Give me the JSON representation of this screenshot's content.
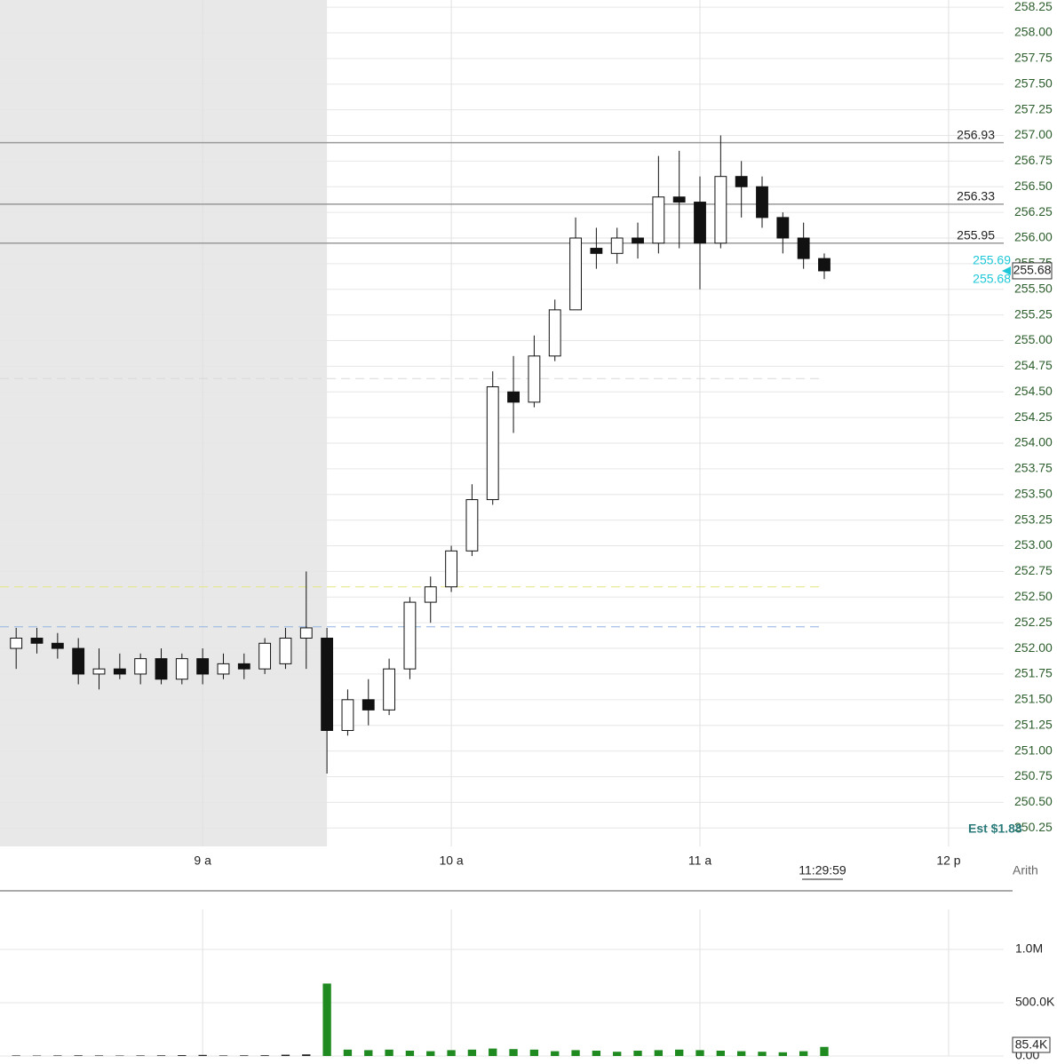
{
  "chart_data": [
    {
      "type": "candlestick",
      "x": [
        495,
        500,
        505,
        510,
        515,
        520,
        525,
        530,
        535,
        540,
        545,
        550,
        555,
        560,
        565,
        570,
        575,
        580,
        585,
        590,
        595,
        600,
        605,
        610,
        615,
        620,
        625,
        630,
        635,
        640,
        645,
        650,
        655,
        660,
        665,
        670,
        675,
        680,
        685,
        690
      ],
      "open": [
        252.0,
        252.1,
        252.05,
        252.0,
        251.75,
        251.8,
        251.75,
        251.9,
        251.7,
        251.9,
        251.75,
        251.85,
        251.8,
        251.85,
        252.1,
        252.1,
        251.2,
        251.5,
        251.4,
        251.8,
        252.45,
        252.6,
        252.95,
        253.45,
        254.5,
        254.4,
        254.85,
        255.3,
        255.9,
        255.85,
        256.0,
        255.95,
        256.4,
        256.35,
        255.95,
        256.6,
        256.5,
        256.2,
        256.0,
        255.8
      ],
      "high": [
        252.2,
        252.2,
        252.15,
        252.1,
        252.0,
        251.95,
        251.95,
        252.0,
        251.95,
        252.0,
        251.95,
        251.95,
        252.1,
        252.2,
        252.75,
        252.2,
        251.6,
        251.7,
        251.9,
        252.5,
        252.7,
        253.0,
        253.6,
        254.7,
        254.85,
        255.05,
        255.4,
        256.2,
        256.1,
        256.1,
        256.15,
        256.8,
        256.85,
        256.6,
        257.0,
        256.75,
        256.6,
        256.25,
        256.15,
        255.85
      ],
      "low": [
        251.8,
        251.95,
        251.9,
        251.65,
        251.6,
        251.7,
        251.65,
        251.65,
        251.65,
        251.65,
        251.7,
        251.7,
        251.75,
        251.8,
        251.8,
        250.78,
        251.15,
        251.25,
        251.35,
        251.7,
        252.25,
        252.55,
        252.9,
        253.4,
        254.1,
        254.35,
        254.8,
        255.3,
        255.7,
        255.75,
        255.8,
        255.85,
        255.9,
        255.5,
        255.9,
        256.2,
        256.1,
        255.85,
        255.7,
        255.6
      ],
      "close": [
        252.1,
        252.05,
        252.0,
        251.75,
        251.8,
        251.75,
        251.9,
        251.7,
        251.9,
        251.75,
        251.85,
        251.8,
        252.05,
        252.1,
        252.2,
        251.2,
        251.5,
        251.4,
        251.8,
        252.45,
        252.6,
        252.95,
        253.45,
        254.55,
        254.4,
        254.85,
        255.3,
        256.0,
        255.85,
        256.0,
        255.95,
        256.4,
        256.35,
        255.95,
        256.6,
        256.5,
        256.2,
        256.0,
        255.8,
        255.68
      ],
      "xlim": [
        491.1,
        733.3
      ],
      "xticks": [
        {
          "value": 540,
          "label": "9 a"
        },
        {
          "value": 600,
          "label": "10 a"
        },
        {
          "value": 660,
          "label": "11 a"
        },
        {
          "value": 720,
          "label": "12 p"
        }
      ],
      "ylim": [
        250.07,
        258.32
      ],
      "yticks": [
        {
          "value": 250.25,
          "label": "250.25"
        },
        {
          "value": 250.5,
          "label": "250.50"
        },
        {
          "value": 250.75,
          "label": "250.75"
        },
        {
          "value": 251,
          "label": "251.00"
        },
        {
          "value": 251.25,
          "label": "251.25"
        },
        {
          "value": 251.5,
          "label": "251.50"
        },
        {
          "value": 251.75,
          "label": "251.75"
        },
        {
          "value": 252,
          "label": "252.00"
        },
        {
          "value": 252.25,
          "label": "252.25"
        },
        {
          "value": 252.5,
          "label": "252.50"
        },
        {
          "value": 252.75,
          "label": "252.75"
        },
        {
          "value": 253,
          "label": "253.00"
        },
        {
          "value": 253.25,
          "label": "253.25"
        },
        {
          "value": 253.5,
          "label": "253.50"
        },
        {
          "value": 253.75,
          "label": "253.75"
        },
        {
          "value": 254,
          "label": "254.00"
        },
        {
          "value": 254.25,
          "label": "254.25"
        },
        {
          "value": 254.5,
          "label": "254.50"
        },
        {
          "value": 254.75,
          "label": "254.75"
        },
        {
          "value": 255,
          "label": "255.00"
        },
        {
          "value": 255.25,
          "label": "255.25"
        },
        {
          "value": 255.5,
          "label": "255.50"
        },
        {
          "value": 255.75,
          "label": "255.75"
        },
        {
          "value": 256,
          "label": "256.00"
        },
        {
          "value": 256.25,
          "label": "256.25"
        },
        {
          "value": 256.5,
          "label": "256.50"
        },
        {
          "value": 256.75,
          "label": "256.75"
        },
        {
          "value": 257,
          "label": "257.00"
        },
        {
          "value": 257.25,
          "label": "257.25"
        },
        {
          "value": 257.5,
          "label": "257.50"
        },
        {
          "value": 257.75,
          "label": "257.75"
        },
        {
          "value": 258,
          "label": "258.00"
        },
        {
          "value": 258.25,
          "label": "258.25"
        }
      ],
      "grid": true,
      "shaded_until": 570,
      "levels": [
        256.93,
        256.33,
        255.95
      ],
      "reference_lines": [
        {
          "value": 252.6,
          "color": "#e6e680"
        },
        {
          "value": 252.21,
          "color": "#8fb4e0"
        },
        {
          "value": 254.63,
          "color": "#d8d8d8"
        }
      ],
      "bid_ask": [
        255.69,
        255.68
      ],
      "last_price": 255.68,
      "estimate_label": "Est $1.88",
      "cursor_time": "11:29:59",
      "scale_mode": "Arith"
    },
    {
      "type": "volume",
      "x": [
        495,
        500,
        505,
        510,
        515,
        520,
        525,
        530,
        535,
        540,
        545,
        550,
        555,
        560,
        565,
        570,
        575,
        580,
        585,
        590,
        595,
        600,
        605,
        610,
        615,
        620,
        625,
        630,
        635,
        640,
        645,
        650,
        655,
        660,
        665,
        670,
        675,
        680,
        685,
        690
      ],
      "values": [
        5000,
        4000,
        5000,
        6000,
        5000,
        4000,
        5000,
        6000,
        8000,
        10000,
        5000,
        6000,
        7000,
        12000,
        15000,
        680000,
        60000,
        55000,
        60000,
        50000,
        45000,
        55000,
        60000,
        70000,
        65000,
        60000,
        45000,
        55000,
        50000,
        40000,
        50000,
        55000,
        60000,
        55000,
        50000,
        45000,
        40000,
        35000,
        45000,
        85400
      ],
      "color": "#1f8a1f",
      "ylim": [
        0,
        1375000
      ],
      "yticks": [
        {
          "value": 0,
          "label": "0.00"
        },
        {
          "value": 500000,
          "label": "500.0K"
        },
        {
          "value": 1000000,
          "label": "1.0M"
        }
      ],
      "last_value": {
        "value": 85400,
        "label": "85.4K"
      }
    }
  ]
}
